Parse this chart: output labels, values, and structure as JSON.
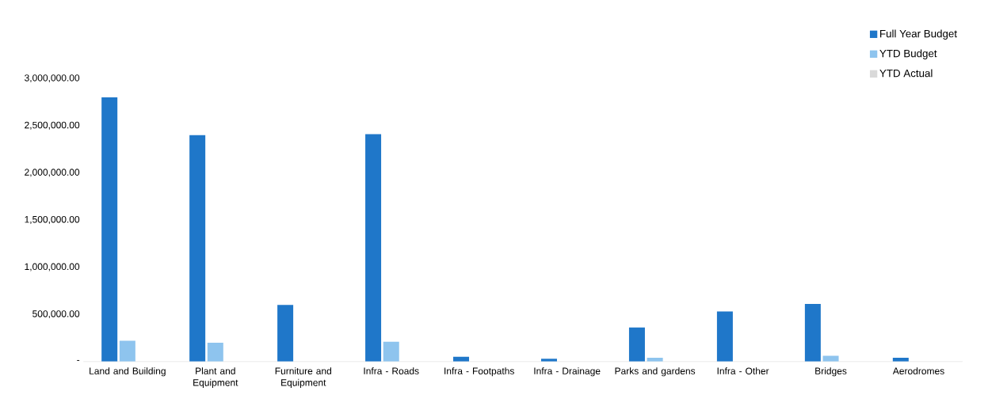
{
  "chart_data": {
    "type": "bar",
    "categories": [
      "Land and Building",
      "Plant and Equipment",
      "Furniture and Equipment",
      "Infra - Roads",
      "Infra - Footpaths",
      "Infra - Drainage",
      "Parks and gardens",
      "Infra - Other",
      "Bridges",
      "Aerodromes"
    ],
    "series": [
      {
        "name": "Full Year Budget",
        "color": "#1f77c9",
        "values": [
          2800000,
          2400000,
          600000,
          2410000,
          50000,
          30000,
          360000,
          530000,
          610000,
          40000
        ]
      },
      {
        "name": "YTD Budget",
        "color": "#8ec4ee",
        "values": [
          220000,
          200000,
          0,
          210000,
          0,
          0,
          40000,
          0,
          60000,
          0
        ]
      },
      {
        "name": "YTD Actual",
        "color": "#d9d9d9",
        "values": [
          0,
          0,
          0,
          0,
          0,
          0,
          0,
          0,
          0,
          0
        ]
      }
    ],
    "ylim": [
      0,
      3300000
    ],
    "yticks": [
      {
        "value": 0,
        "label": "-"
      },
      {
        "value": 500000,
        "label": "500,000.00"
      },
      {
        "value": 1000000,
        "label": "1,000,000.00"
      },
      {
        "value": 1500000,
        "label": "1,500,000.00"
      },
      {
        "value": 2000000,
        "label": "2,000,000.00"
      },
      {
        "value": 2500000,
        "label": "2,500,000.00"
      },
      {
        "value": 3000000,
        "label": "3,000,000.00"
      }
    ],
    "grid": false,
    "legend": "top right"
  }
}
